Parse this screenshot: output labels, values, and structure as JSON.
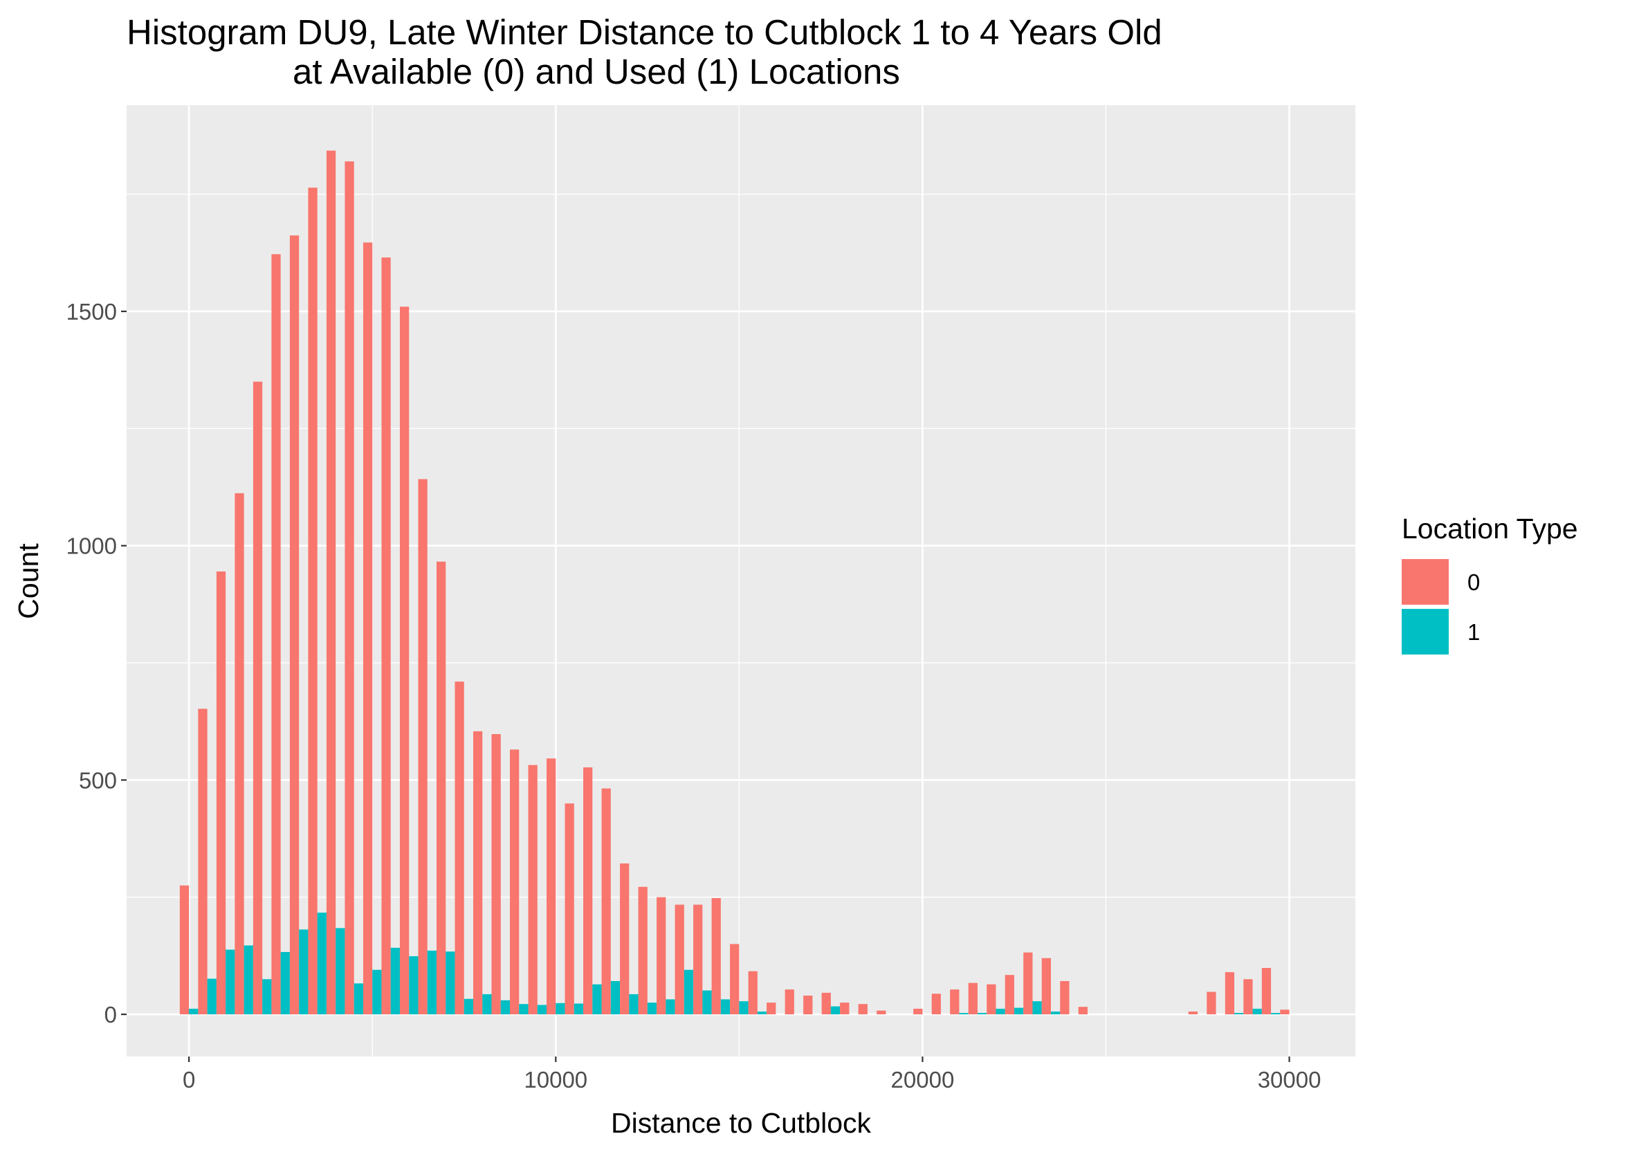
{
  "chart_data": {
    "type": "bar",
    "title": "Histogram DU9, Late Winter Distance to Cutblock 1 to 4 Years Old",
    "subtitle": "at Available (0) and Used (1) Locations",
    "xlabel": "Distance to Cutblock",
    "ylabel": "Count",
    "xlim": [
      -1700,
      31800
    ],
    "ylim": [
      -90,
      1940
    ],
    "x_ticks": [
      0,
      10000,
      20000,
      30000
    ],
    "x_tick_labels": [
      "0",
      "10000",
      "20000",
      "30000"
    ],
    "y_ticks": [
      0,
      500,
      1000,
      1500
    ],
    "y_tick_labels": [
      "0",
      "500",
      "1000",
      "1500"
    ],
    "bin_width": 500,
    "grid": true,
    "legend_position": "right",
    "legend": {
      "title": "Location Type",
      "labels": [
        "0",
        "1"
      ]
    },
    "colors": {
      "0": "#F8766D",
      "1": "#00BFC4",
      "panel": "#EBEBEB",
      "grid": "#FFFFFF"
    },
    "bin_centers": [
      0,
      500,
      1000,
      1500,
      2000,
      2500,
      3000,
      3500,
      4000,
      4500,
      5000,
      5500,
      6000,
      6500,
      7000,
      7500,
      8000,
      8500,
      9000,
      9500,
      10000,
      10500,
      11000,
      11500,
      12000,
      12500,
      13000,
      13500,
      14000,
      14500,
      15000,
      15500,
      16000,
      16500,
      17000,
      17500,
      18000,
      18500,
      19000,
      19500,
      20000,
      20500,
      21000,
      21500,
      22000,
      22500,
      23000,
      23500,
      24000,
      24500,
      25000,
      25500,
      26000,
      26500,
      27000,
      27500,
      28000,
      28500,
      29000,
      29500,
      30000
    ],
    "series": [
      {
        "name": "0",
        "values": [
          275,
          652,
          945,
          1112,
          1350,
          1622,
          1662,
          1764,
          1843,
          1820,
          1647,
          1615,
          1510,
          1142,
          966,
          710,
          604,
          598,
          565,
          532,
          546,
          450,
          527,
          482,
          322,
          272,
          250,
          234,
          234,
          248,
          150,
          92,
          25,
          53,
          40,
          46,
          25,
          22,
          8,
          0,
          12,
          44,
          53,
          67,
          64,
          84,
          132,
          120,
          71,
          16,
          0,
          0,
          0,
          0,
          0,
          6,
          48,
          90,
          75,
          99,
          10
        ]
      },
      {
        "name": "1",
        "values": [
          12,
          76,
          138,
          147,
          75,
          133,
          181,
          217,
          184,
          66,
          95,
          142,
          124,
          136,
          134,
          33,
          43,
          30,
          22,
          20,
          24,
          23,
          64,
          71,
          43,
          25,
          32,
          95,
          51,
          32,
          28,
          6,
          0,
          0,
          0,
          17,
          0,
          0,
          0,
          0,
          0,
          0,
          3,
          3,
          12,
          14,
          28,
          6,
          0,
          0,
          0,
          0,
          0,
          0,
          0,
          0,
          0,
          3,
          12,
          3,
          0
        ]
      }
    ]
  }
}
